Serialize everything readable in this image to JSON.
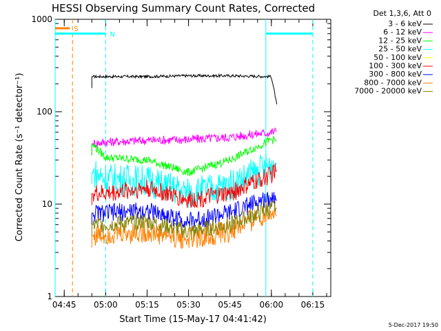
{
  "chart_data": {
    "type": "line",
    "title": "HESSI Observing Summary Count Rates, Corrected",
    "xlabel": "Start Time (15-May-17 04:41:42)",
    "ylabel": "Corrected Count Rate (s⁻¹ detector⁻¹)",
    "x_scale": "time",
    "x_range": [
      "04:41:42",
      "06:21:30"
    ],
    "x_ticks": [
      "04:45",
      "05:00",
      "05:15",
      "05:30",
      "05:45",
      "06:00",
      "06:15"
    ],
    "y_scale": "log",
    "y_range": [
      1,
      1000
    ],
    "y_ticks": [
      "1",
      "10",
      "100",
      "1000"
    ],
    "legend_title": "Det 1,3,6, Att 0",
    "grid": false,
    "series": [
      {
        "name": "3 - 6 keV",
        "color": "#000000",
        "x": [
          "04:55",
          "05:00",
          "05:15",
          "05:30",
          "05:45",
          "06:00",
          "06:02"
        ],
        "values": [
          240,
          240,
          240,
          245,
          245,
          240,
          120
        ]
      },
      {
        "name": "6 - 12 keV",
        "color": "#ff00ff",
        "x": [
          "04:55",
          "05:00",
          "05:15",
          "05:30",
          "05:45",
          "06:00",
          "06:02"
        ],
        "values": [
          45,
          47,
          49,
          50,
          53,
          60,
          62
        ]
      },
      {
        "name": "12 - 25 keV",
        "color": "#00ff00",
        "x": [
          "04:55",
          "05:00",
          "05:15",
          "05:30",
          "05:45",
          "06:00",
          "06:02"
        ],
        "values": [
          45,
          32,
          30,
          22,
          30,
          50,
          48
        ]
      },
      {
        "name": "25 - 50 keV",
        "color": "#00ffff",
        "x": [
          "04:55",
          "05:00",
          "05:15",
          "05:30",
          "05:45",
          "06:00",
          "06:02"
        ],
        "values": [
          22,
          19,
          18,
          13,
          16,
          27,
          28
        ]
      },
      {
        "name": "50 - 100 keV",
        "color": "#ffff00",
        "x": [],
        "values": []
      },
      {
        "name": "100 - 300 keV",
        "color": "#ff0000",
        "x": [
          "04:55",
          "05:00",
          "05:15",
          "05:30",
          "05:45",
          "06:00",
          "06:02"
        ],
        "values": [
          13,
          13,
          15,
          11,
          13,
          21,
          23
        ]
      },
      {
        "name": "300 - 800 keV",
        "color": "#0000ff",
        "x": [
          "04:55",
          "05:00",
          "05:15",
          "05:30",
          "05:45",
          "06:00",
          "06:02"
        ],
        "values": [
          8,
          8,
          8.5,
          6.5,
          8,
          12,
          11
        ]
      },
      {
        "name": "800 - 7000 keV",
        "color": "#ff8000",
        "x": [
          "04:55",
          "05:00",
          "05:15",
          "05:30",
          "05:45",
          "06:00",
          "06:02"
        ],
        "values": [
          4.5,
          4.8,
          5,
          4.2,
          5,
          8.5,
          7.5
        ]
      },
      {
        "name": "7000 - 20000 keV",
        "color": "#808000",
        "x": [
          "04:55",
          "05:00",
          "05:15",
          "05:30",
          "05:45",
          "06:00",
          "06:02"
        ],
        "values": [
          6,
          6,
          6.5,
          5,
          6,
          9,
          9
        ]
      }
    ],
    "markers": [
      {
        "label": "S",
        "type": "interval",
        "x_start": "04:41:42",
        "x_end": "04:47",
        "y": 800,
        "color": "#ff8000"
      },
      {
        "label": "N",
        "type": "interval",
        "x_start": "04:41:42",
        "x_end": "05:00",
        "y": 700,
        "color": "#00ffff"
      },
      {
        "label": "",
        "type": "interval",
        "x_start": "05:58",
        "x_end": "06:15",
        "y": 700,
        "color": "#00ffff"
      }
    ],
    "vlines": [
      {
        "x": "04:41:42",
        "style": "solid",
        "color": "#00ffff"
      },
      {
        "x": "04:48",
        "style": "dashed",
        "color": "#ff8000"
      },
      {
        "x": "05:00",
        "style": "dashed",
        "color": "#00ffff"
      },
      {
        "x": "05:58",
        "style": "solid",
        "color": "#00ffff"
      },
      {
        "x": "06:15",
        "style": "dashed",
        "color": "#00ffff"
      }
    ]
  },
  "footer": {
    "timestamp": "5-Dec-2017 19:50"
  }
}
